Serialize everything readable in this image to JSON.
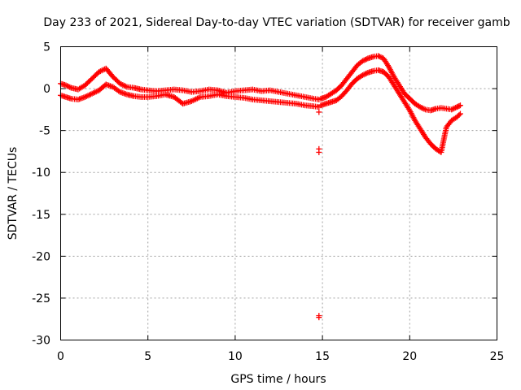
{
  "chart_data": {
    "type": "scatter",
    "title": "Day 233 of 2021, Sidereal Day-to-day VTEC variation (SDTVAR) for receiver gamb",
    "xlabel": "GPS time / hours",
    "ylabel": "SDTVAR / TECUs",
    "xlim": [
      0,
      25
    ],
    "ylim": [
      -30,
      5
    ],
    "xticks": [
      0,
      5,
      10,
      15,
      20,
      25
    ],
    "yticks": [
      5,
      0,
      -5,
      -10,
      -15,
      -20,
      -25,
      -30
    ],
    "xtick_labels": [
      "0",
      "5",
      "10",
      "15",
      "20",
      "25"
    ],
    "ytick_labels": [
      "5",
      "0",
      "-5",
      "-10",
      "-15",
      "-20",
      "-25",
      "-30"
    ],
    "grid": true,
    "marker": "plus",
    "color": "#ff0000",
    "series": [
      {
        "name": "track-upper",
        "x": [
          0.0,
          0.3,
          0.6,
          1.0,
          1.4,
          1.8,
          2.2,
          2.6,
          3.0,
          3.4,
          3.8,
          4.2,
          4.6,
          5.0,
          5.5,
          6.0,
          6.5,
          7.0,
          7.5,
          8.0,
          8.5,
          9.0,
          9.5,
          10.0,
          10.5,
          11.0,
          11.5,
          12.0,
          12.5,
          13.0,
          13.5,
          14.0,
          14.5,
          14.8
        ],
        "y": [
          0.6,
          0.4,
          0.1,
          -0.1,
          0.4,
          1.2,
          2.0,
          2.4,
          1.4,
          0.6,
          0.2,
          0.1,
          -0.1,
          -0.2,
          -0.3,
          -0.2,
          -0.1,
          -0.2,
          -0.4,
          -0.3,
          -0.1,
          -0.2,
          -0.5,
          -0.3,
          -0.2,
          -0.1,
          -0.3,
          -0.2,
          -0.4,
          -0.6,
          -0.8,
          -1.0,
          -1.2,
          -1.3
        ]
      },
      {
        "name": "track-lower",
        "x": [
          0.0,
          0.3,
          0.6,
          1.0,
          1.4,
          1.8,
          2.2,
          2.6,
          3.0,
          3.4,
          3.8,
          4.2,
          4.6,
          5.0,
          5.5,
          6.0,
          6.5,
          7.0,
          7.5,
          8.0,
          8.5,
          9.0,
          9.5,
          10.0,
          10.5,
          11.0,
          11.5,
          12.0,
          12.5,
          13.0,
          13.5,
          14.0,
          14.5,
          14.8
        ],
        "y": [
          -0.8,
          -1.0,
          -1.2,
          -1.3,
          -1.0,
          -0.6,
          -0.2,
          0.5,
          0.2,
          -0.4,
          -0.7,
          -0.9,
          -1.0,
          -1.0,
          -0.9,
          -0.7,
          -1.0,
          -1.8,
          -1.5,
          -1.0,
          -0.9,
          -0.7,
          -0.9,
          -1.0,
          -1.1,
          -1.3,
          -1.4,
          -1.5,
          -1.6,
          -1.7,
          -1.8,
          -2.0,
          -2.1,
          -2.2
        ]
      },
      {
        "name": "track-afternoon-upper",
        "x": [
          14.9,
          15.2,
          15.5,
          15.8,
          16.1,
          16.4,
          16.7,
          17.0,
          17.3,
          17.6,
          17.9,
          18.2,
          18.5,
          18.8,
          19.1,
          19.4,
          19.7,
          20.0,
          20.3,
          20.6,
          20.9,
          21.2,
          21.5,
          21.8,
          22.1,
          22.4,
          22.7,
          22.9
        ],
        "y": [
          -1.2,
          -1.0,
          -0.6,
          -0.2,
          0.4,
          1.2,
          2.0,
          2.8,
          3.3,
          3.6,
          3.8,
          3.9,
          3.6,
          2.6,
          1.4,
          0.4,
          -0.6,
          -1.2,
          -1.8,
          -2.2,
          -2.5,
          -2.6,
          -2.4,
          -2.3,
          -2.4,
          -2.5,
          -2.2,
          -2.0
        ]
      },
      {
        "name": "track-afternoon-lower",
        "x": [
          14.9,
          15.2,
          15.5,
          15.8,
          16.1,
          16.4,
          16.7,
          17.0,
          17.3,
          17.6,
          17.9,
          18.2,
          18.5,
          18.8,
          19.1,
          19.4,
          19.7,
          20.0,
          20.3,
          20.6,
          20.9,
          21.2,
          21.5,
          21.8,
          22.1,
          22.4,
          22.7,
          22.9
        ],
        "y": [
          -2.0,
          -1.8,
          -1.6,
          -1.4,
          -0.9,
          -0.2,
          0.6,
          1.2,
          1.6,
          1.9,
          2.1,
          2.2,
          2.0,
          1.4,
          0.4,
          -0.6,
          -1.6,
          -2.6,
          -3.8,
          -4.8,
          -5.8,
          -6.6,
          -7.2,
          -7.6,
          -4.6,
          -3.8,
          -3.4,
          -3.0
        ]
      },
      {
        "name": "outliers",
        "x": [
          14.8,
          14.8,
          14.8,
          14.8,
          14.8
        ],
        "y": [
          -2.8,
          -7.2,
          -7.6,
          -27.1,
          -27.3
        ]
      }
    ]
  }
}
